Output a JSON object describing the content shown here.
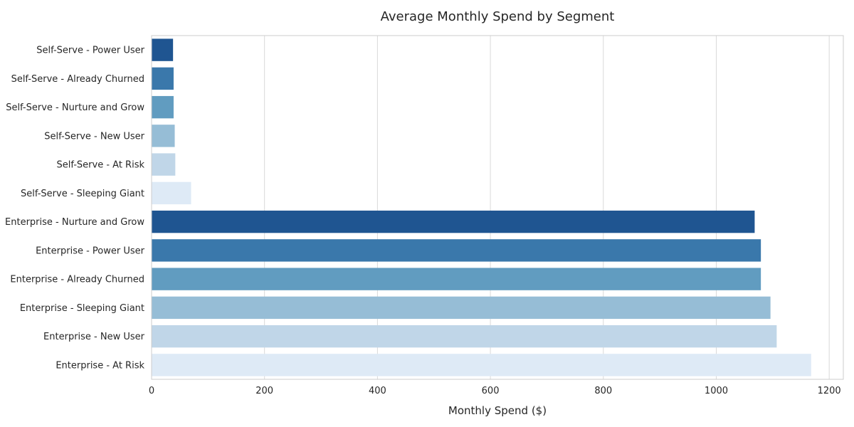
{
  "chart_data": {
    "type": "bar",
    "orientation": "horizontal",
    "title": "Average Monthly Spend by Segment",
    "xlabel": "Monthly Spend ($)",
    "ylabel": "",
    "xlim": [
      0,
      1225
    ],
    "x_ticks": [
      0,
      200,
      400,
      600,
      800,
      1000,
      1200
    ],
    "grid": true,
    "legend": "none",
    "categories": [
      "Self-Serve - Power User",
      "Self-Serve - Already Churned",
      "Self-Serve - Nurture and Grow",
      "Self-Serve - New User",
      "Self-Serve - At Risk",
      "Self-Serve - Sleeping Giant",
      "Enterprise - Nurture and Grow",
      "Enterprise - Power User",
      "Enterprise - Already Churned",
      "Enterprise - Sleeping Giant",
      "Enterprise - New User",
      "Enterprise - At Risk"
    ],
    "values": [
      38,
      39,
      39,
      41,
      42,
      70,
      1068,
      1079,
      1079,
      1096,
      1107,
      1168
    ],
    "colors": [
      "#1f5591",
      "#3a78ab",
      "#619cc0",
      "#96bdd6",
      "#c0d6e8",
      "#deeaf6",
      "#1f5591",
      "#3a78ab",
      "#619cc0",
      "#96bdd6",
      "#c0d6e8",
      "#deeaf6"
    ]
  }
}
